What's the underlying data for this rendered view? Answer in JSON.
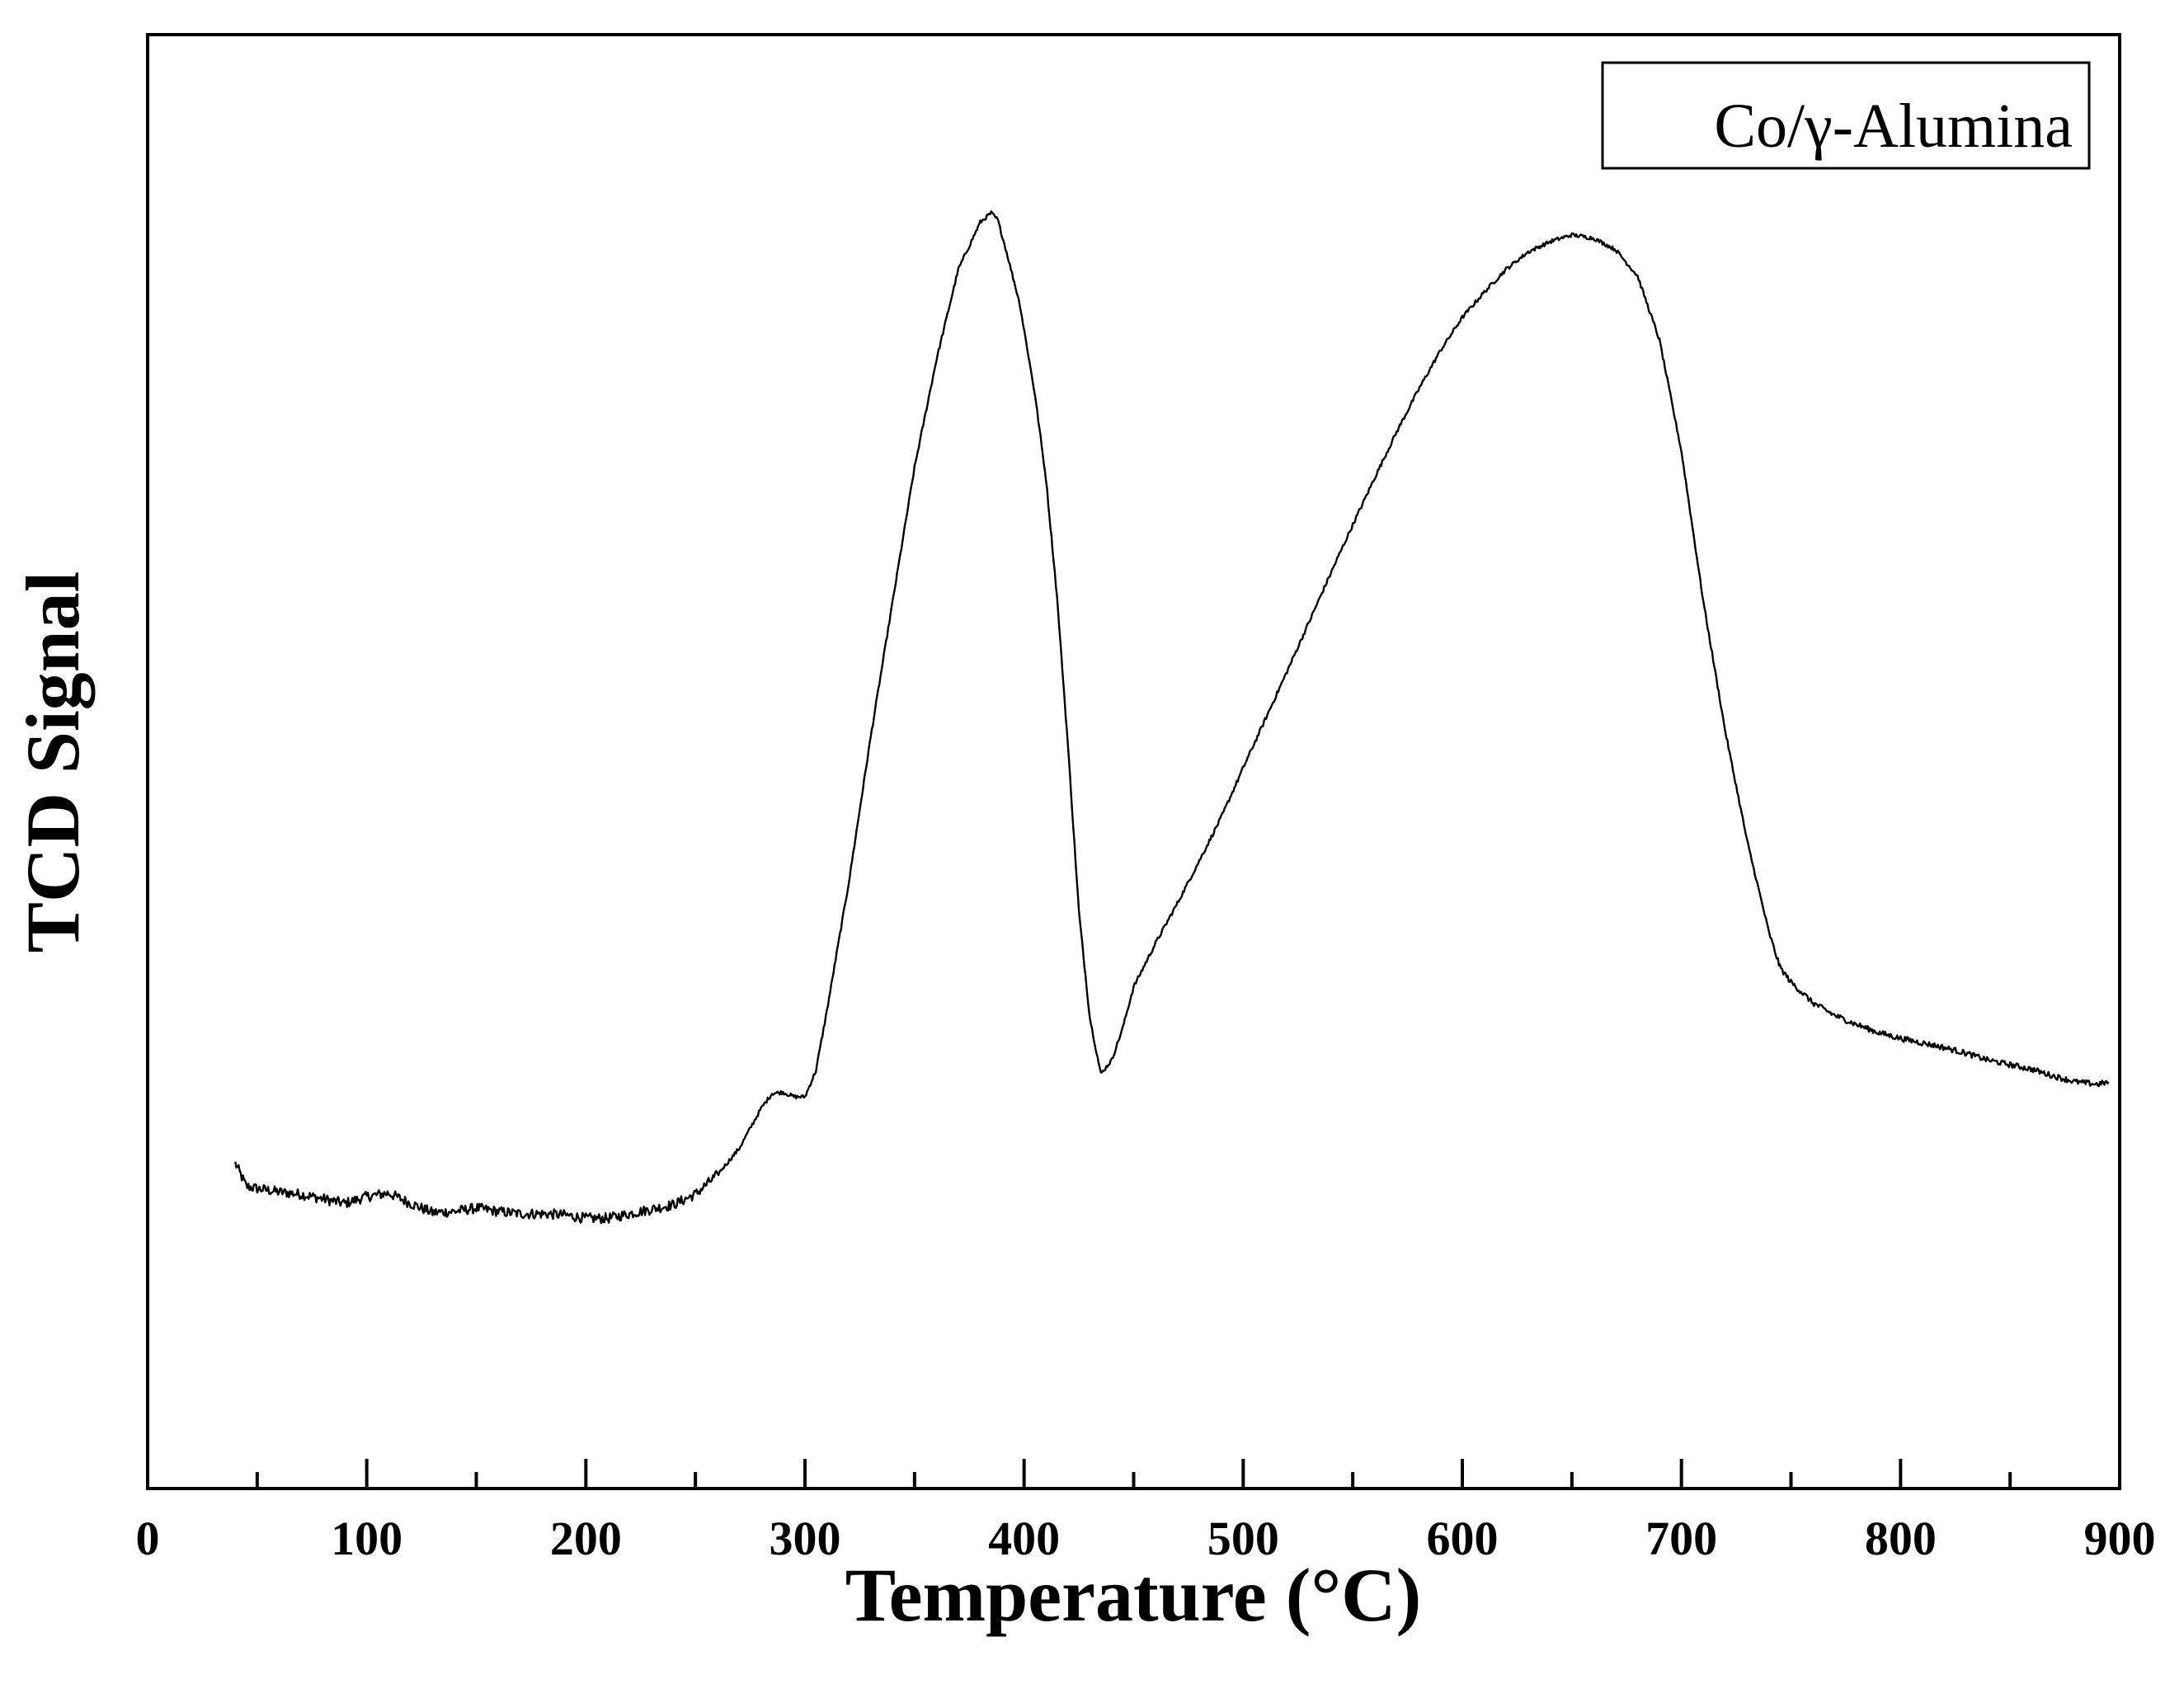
{
  "chart_data": {
    "type": "line",
    "title": "",
    "xlabel": "Temperature (°C)",
    "ylabel": "TCD Signal",
    "xlim": [
      0,
      900
    ],
    "ylim": [
      0,
      100
    ],
    "x_ticks": [
      0,
      100,
      200,
      300,
      400,
      500,
      600,
      700,
      800,
      900
    ],
    "x_tick_labels": [
      "0",
      "100",
      "200",
      "300",
      "400",
      "500",
      "600",
      "700",
      "800",
      "900"
    ],
    "y_ticks_visible": false,
    "grid": false,
    "legend": {
      "position": "top-right",
      "entries": [
        "Co/γ-Alumina"
      ]
    },
    "series": [
      {
        "name": "Co/γ-Alumina",
        "color": "#000000",
        "x": [
          40,
          45,
          50,
          60,
          70,
          80,
          90,
          100,
          110,
          120,
          130,
          140,
          150,
          160,
          170,
          180,
          190,
          200,
          210,
          220,
          230,
          240,
          250,
          260,
          270,
          280,
          285,
          290,
          295,
          300,
          305,
          310,
          320,
          330,
          340,
          350,
          360,
          370,
          380,
          385,
          388,
          392,
          398,
          405,
          410,
          415,
          420,
          425,
          430,
          435,
          440,
          445,
          450,
          460,
          470,
          480,
          490,
          500,
          510,
          520,
          530,
          540,
          550,
          560,
          570,
          580,
          590,
          600,
          610,
          620,
          630,
          640,
          650,
          660,
          670,
          680,
          690,
          700,
          710,
          720,
          730,
          740,
          745,
          750,
          760,
          770,
          780,
          790,
          800,
          810,
          820,
          830,
          840,
          850,
          860,
          870,
          880,
          890,
          895
        ],
        "values": [
          16.5,
          14.5,
          14.3,
          14.0,
          13.8,
          13.4,
          13.0,
          13.6,
          13.9,
          13.0,
          12.2,
          12.3,
          12.6,
          12.3,
          12.1,
          12.1,
          12.0,
          11.7,
          11.7,
          12.1,
          12.5,
          12.9,
          13.8,
          15.5,
          17.8,
          21.3,
          22.6,
          22.7,
          22.3,
          22.3,
          24.6,
          29.8,
          41.0,
          53.7,
          65.5,
          77.2,
          86.6,
          94.5,
          98.6,
          99.4,
          98.8,
          96.0,
          91.5,
          83.5,
          76.2,
          66.0,
          53.0,
          38.5,
          29.2,
          24.3,
          25.5,
          28.3,
          31.9,
          35.7,
          39.2,
          42.9,
          46.7,
          51.0,
          55.2,
          59.4,
          63.7,
          68.0,
          72.2,
          76.3,
          80.3,
          84.0,
          87.4,
          90.3,
          92.5,
          94.5,
          96.0,
          96.9,
          97.5,
          97.2,
          96.2,
          93.9,
          88.3,
          78.6,
          65.5,
          54.2,
          44.6,
          36.6,
          33.6,
          32.3,
          30.5,
          29.4,
          28.6,
          27.9,
          27.4,
          27.0,
          26.6,
          26.1,
          25.5,
          25.1,
          24.7,
          24.1,
          23.6,
          23.4,
          23.6
        ]
      }
    ]
  }
}
